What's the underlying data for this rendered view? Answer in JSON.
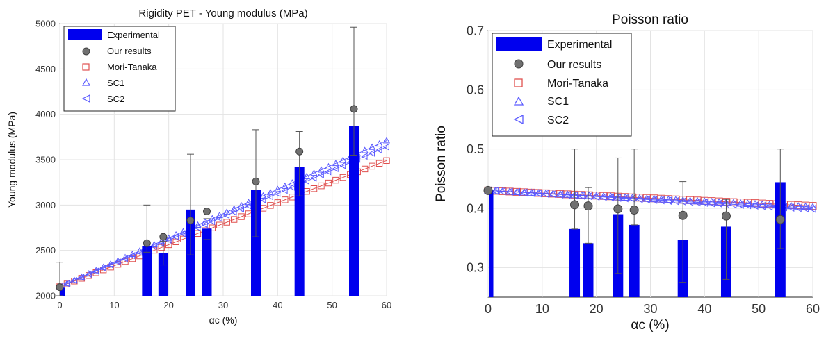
{
  "chart_data": [
    {
      "type": "bar",
      "title": "Rigidity PET - Young modulus (MPa)",
      "xlabel": "αc (%)",
      "ylabel": "Young modulus (MPa)",
      "xlim": [
        0,
        60
      ],
      "ylim": [
        2000,
        5000
      ],
      "x_ticks": [
        0,
        10,
        20,
        30,
        40,
        50,
        60
      ],
      "y_ticks": [
        2000,
        2500,
        3000,
        3500,
        4000,
        4500,
        5000
      ],
      "grid": true,
      "legend_position": "top-left",
      "legend": [
        "Experimental",
        "Our results",
        "Mori-Tanaka",
        "SC1",
        "SC2"
      ],
      "colors": {
        "experimental": "#0000ee",
        "our_results": "#707070",
        "mori_tanaka": "#e0504f",
        "sc1": "#5a5aff",
        "sc2": "#5a5aff",
        "error": "#555555"
      },
      "experimental": {
        "x": [
          0,
          16,
          19,
          24,
          27,
          36,
          44,
          54
        ],
        "values": [
          2090,
          2550,
          2470,
          2950,
          2740,
          3170,
          3420,
          3870
        ],
        "error_high": [
          2370,
          3000,
          2600,
          3560,
          2850,
          3830,
          3810,
          4960
        ],
        "error_low": [
          2000,
          2480,
          2340,
          2450,
          2620,
          2650,
          3100,
          3550
        ]
      },
      "our_results": {
        "x": [
          0,
          16,
          19,
          24,
          27,
          36,
          44,
          54
        ],
        "y": [
          2095,
          2580,
          2650,
          2830,
          2930,
          3260,
          3590,
          4060
        ]
      },
      "models": {
        "x_range": [
          0,
          60
        ],
        "mori_tanaka": [
          2100,
          3490
        ],
        "sc1": [
          2100,
          3710
        ],
        "sc2": [
          2100,
          3640
        ]
      }
    },
    {
      "type": "bar",
      "title": "Poisson ratio",
      "xlabel": "αc (%)",
      "ylabel": "Poisson ratio",
      "xlim": [
        0,
        60
      ],
      "ylim": [
        0.25,
        0.7
      ],
      "x_ticks": [
        0,
        10,
        20,
        30,
        40,
        50,
        60
      ],
      "y_ticks": [
        0.3,
        0.4,
        0.5,
        0.6,
        0.7
      ],
      "grid": true,
      "legend_position": "top-left",
      "legend": [
        "Experimental",
        "Our results",
        "Mori-Tanaka",
        "SC1",
        "SC2"
      ],
      "colors": {
        "experimental": "#0000ee",
        "our_results": "#707070",
        "mori_tanaka": "#e0504f",
        "sc1": "#5a5aff",
        "sc2": "#5a5aff",
        "error": "#555555"
      },
      "experimental": {
        "x": [
          0,
          16,
          18.5,
          24,
          27,
          36,
          44,
          54
        ],
        "values": [
          0.43,
          0.365,
          0.341,
          0.39,
          0.372,
          0.347,
          0.369,
          0.444
        ],
        "error_high": [
          0.43,
          0.5,
          0.435,
          0.485,
          0.5,
          0.445,
          0.415,
          0.5
        ],
        "error_low": [
          0.43,
          0.365,
          0.341,
          0.29,
          0.372,
          0.275,
          0.28,
          0.332
        ]
      },
      "our_results": {
        "x": [
          0,
          16,
          18.5,
          24,
          27,
          36,
          44,
          54
        ],
        "y": [
          0.43,
          0.406,
          0.404,
          0.399,
          0.397,
          0.388,
          0.387,
          0.381
        ]
      },
      "models": {
        "x_range": [
          0,
          60
        ],
        "mori_tanaka": [
          0.43,
          0.404
        ],
        "sc1": [
          0.43,
          0.402
        ],
        "sc2": [
          0.43,
          0.399
        ]
      }
    }
  ]
}
